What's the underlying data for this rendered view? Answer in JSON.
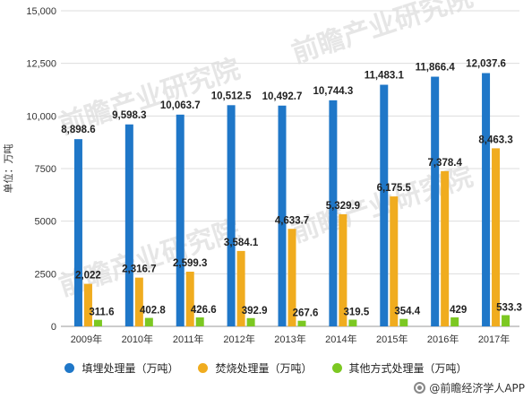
{
  "chart_data": {
    "type": "bar",
    "ylabel": "单位：万吨",
    "ylim": [
      0,
      15000
    ],
    "yticks": [
      0,
      2500,
      5000,
      7500,
      10000,
      12500,
      15000
    ],
    "ytick_labels": [
      "0",
      "2500",
      "5000",
      "7500",
      "10,000",
      "12,500",
      "15,000"
    ],
    "grid": "horizontal",
    "legend_position": "bottom",
    "categories": [
      "2009年",
      "2010年",
      "2011年",
      "2012年",
      "2013年",
      "2014年",
      "2015年",
      "2016年",
      "2017年"
    ],
    "series": [
      {
        "name": "填埋处理量（万吨）",
        "color": "#1f77c8",
        "values": [
          8898.6,
          9598.3,
          10063.7,
          10512.5,
          10492.7,
          10744.3,
          11483.1,
          11866.4,
          12037.6
        ],
        "labels": [
          "8,898.6",
          "9,598.3",
          "10,063.7",
          "10,512.5",
          "10,492.7",
          "10,744.3",
          "11,483.1",
          "11,866.4",
          "12,037.6"
        ]
      },
      {
        "name": "焚烧处理量（万吨）",
        "color": "#f0ac1f",
        "values": [
          2022,
          2316.7,
          2599.3,
          3584.1,
          4633.7,
          5329.9,
          6175.5,
          7378.4,
          8463.3
        ],
        "labels": [
          "2,022",
          "2,316.7",
          "2,599.3",
          "3,584.1",
          "4,633.7",
          "5,329.9",
          "6,175.5",
          "7,378.4",
          "8,463.3"
        ]
      },
      {
        "name": "其他方式处理量（万吨）",
        "color": "#7cc822",
        "values": [
          311.6,
          402.8,
          426.6,
          392.9,
          267.6,
          319.5,
          354.4,
          429,
          533.3
        ],
        "labels": [
          "311.6",
          "402.8",
          "426.6",
          "392.9",
          "267.6",
          "319.5",
          "354.4",
          "429",
          "533.3"
        ]
      }
    ]
  },
  "source": {
    "text": "@前瞻经济学人APP",
    "icon": "qianzhan-logo-icon"
  },
  "watermark": {
    "text": "前瞻产业研究院"
  }
}
